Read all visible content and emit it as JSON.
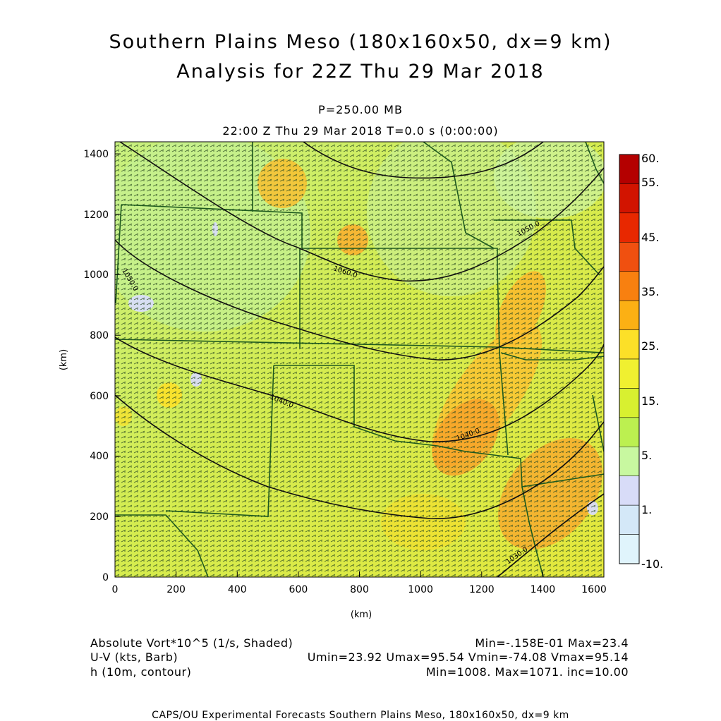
{
  "title_line1": "Southern Plains Meso (180x160x50, dx=9 km)",
  "title_line2": "Analysis for 22Z Thu 29 Mar 2018",
  "level_label": "P=250.00 MB",
  "time_label": "22:00 Z Thu 29 Mar 2018    T=0.0 s (0:00:00)",
  "x_axis": {
    "label": "(km)",
    "ticks": [
      "0",
      "200",
      "400",
      "600",
      "800",
      "1000",
      "1200",
      "1400",
      "1600"
    ]
  },
  "y_axis": {
    "label": "(km)",
    "ticks": [
      "0",
      "200",
      "400",
      "600",
      "800",
      "1000",
      "1200",
      "1400"
    ]
  },
  "colorbar": {
    "labels": [
      "60.",
      "55.",
      "45.",
      "35.",
      "25.",
      "15.",
      "5.",
      "1.",
      "-10."
    ],
    "colors": [
      "#b40000",
      "#d21400",
      "#e82800",
      "#f05010",
      "#f88010",
      "#fcb014",
      "#fce028",
      "#f0f030",
      "#d8f030",
      "#bcf050",
      "#c8f8a0",
      "#d8dcf8",
      "#d4e8f8",
      "#e0f4fc"
    ]
  },
  "contour_labels": [
    "1060.0",
    "1050.0",
    "1050.0",
    "1040.0",
    "1040.0",
    "1030.0"
  ],
  "footer": {
    "field1": "Absolute Vort*10^5 (1/s, Shaded)",
    "field1_stats": "Min=-.158E-01 Max=23.4",
    "field2": "U-V (kts, Barb)",
    "field2_stats": "Umin=23.92 Umax=95.54 Vmin=-74.08 Vmax=95.14",
    "field3": "h (10m, contour)",
    "field3_stats": "Min=1008. Max=1071. inc=10.00",
    "credit": "CAPS/OU Experimental Forecasts  Southern Plains Meso, 180x160x50, dx=9 km"
  }
}
